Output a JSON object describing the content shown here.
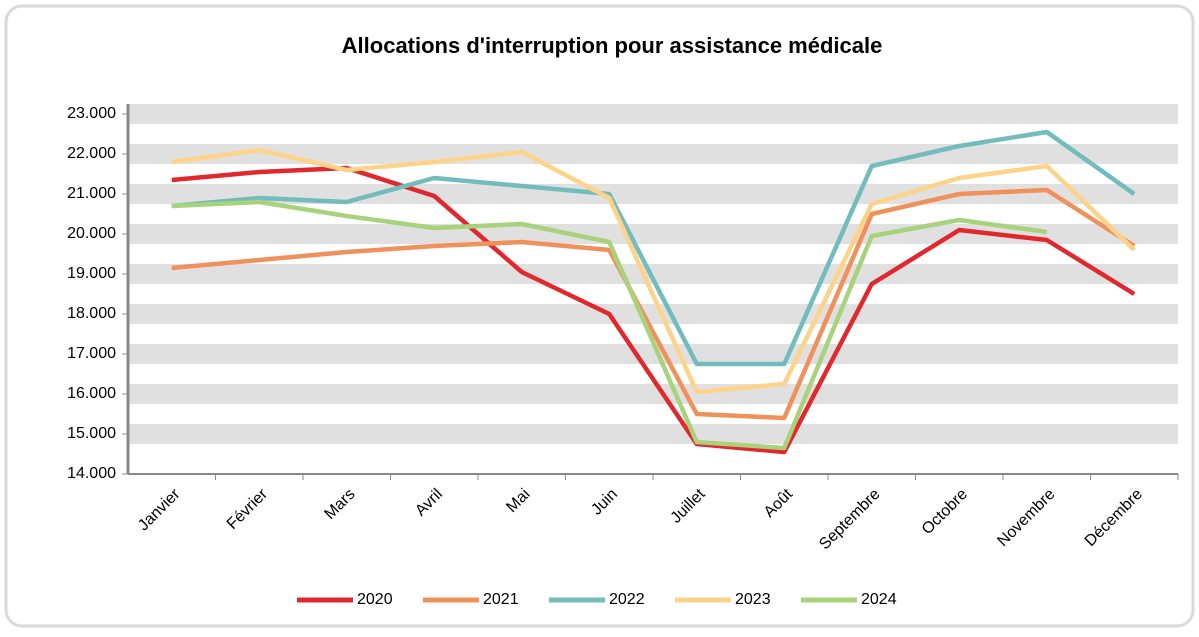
{
  "chart_data": {
    "type": "line",
    "title": "Allocations d'interruption pour assistance médicale",
    "categories": [
      "Janvier",
      "Février",
      "Mars",
      "Avril",
      "Mai",
      "Juin",
      "Juillet",
      "Août",
      "Septembre",
      "Octobre",
      "Novembre",
      "Décembre"
    ],
    "series": [
      {
        "name": "2020",
        "color": "#e0282e",
        "values": [
          21350,
          21550,
          21650,
          20950,
          19050,
          18000,
          14750,
          14550,
          18750,
          20100,
          19850,
          18500
        ]
      },
      {
        "name": "2021",
        "color": "#f0905a",
        "values": [
          19150,
          19350,
          19550,
          19700,
          19800,
          19600,
          15500,
          15400,
          20500,
          21000,
          21100,
          19700
        ]
      },
      {
        "name": "2022",
        "color": "#72bcbc",
        "values": [
          20700,
          20900,
          20800,
          21400,
          21200,
          21000,
          16750,
          16750,
          21700,
          22200,
          22550,
          21000
        ]
      },
      {
        "name": "2023",
        "color": "#fdd38a",
        "values": [
          21800,
          22100,
          21600,
          21800,
          22050,
          20900,
          16050,
          16250,
          20750,
          21400,
          21700,
          19600
        ]
      },
      {
        "name": "2024",
        "color": "#a9d27c",
        "values": [
          20700,
          20800,
          20450,
          20150,
          20250,
          19800,
          14800,
          14650,
          19950,
          20350,
          20050,
          null
        ]
      }
    ],
    "ylim": [
      14000,
      23000
    ],
    "yticks": [
      {
        "value": 14000,
        "label": "14.000"
      },
      {
        "value": 15000,
        "label": "15.000"
      },
      {
        "value": 16000,
        "label": "16.000"
      },
      {
        "value": 17000,
        "label": "17.000"
      },
      {
        "value": 18000,
        "label": "18.000"
      },
      {
        "value": 19000,
        "label": "19.000"
      },
      {
        "value": 20000,
        "label": "20.000"
      },
      {
        "value": 21000,
        "label": "21.000"
      },
      {
        "value": 22000,
        "label": "22.000"
      },
      {
        "value": 23000,
        "label": "23.000"
      }
    ],
    "grid": true,
    "legend": "bottom"
  }
}
